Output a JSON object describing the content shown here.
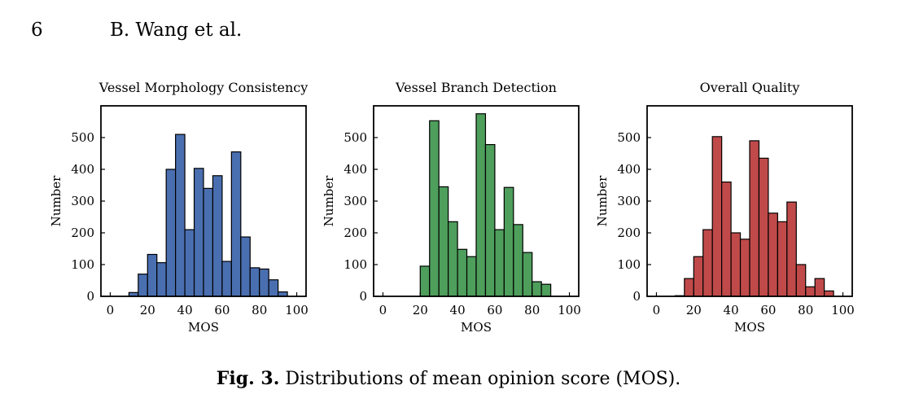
{
  "header": {
    "page_number": "6",
    "running_head": "B. Wang et al."
  },
  "caption": {
    "label": "Fig. 3.",
    "text": "Distributions of mean opinion score (MOS)."
  },
  "chart_data": [
    {
      "type": "bar",
      "title": "Vessel Morphology Consistency",
      "xlabel": "MOS",
      "ylabel": "Number",
      "xlim": [
        -5,
        105
      ],
      "ylim": [
        0,
        600
      ],
      "xticks": [
        0,
        20,
        40,
        60,
        80,
        100
      ],
      "yticks": [
        0,
        100,
        200,
        300,
        400,
        500
      ],
      "bin_width": 5,
      "bin_starts": [
        10,
        15,
        20,
        25,
        30,
        35,
        40,
        45,
        50,
        55,
        60,
        65,
        70,
        75,
        80,
        85,
        90
      ],
      "values": [
        12,
        70,
        132,
        106,
        400,
        510,
        210,
        403,
        340,
        380,
        110,
        455,
        187,
        90,
        86,
        52,
        14
      ],
      "color": "#4a6fb0",
      "grid": false,
      "legend": "none"
    },
    {
      "type": "bar",
      "title": "Vessel Branch Detection",
      "xlabel": "MOS",
      "ylabel": "Number",
      "xlim": [
        -5,
        105
      ],
      "ylim": [
        0,
        600
      ],
      "xticks": [
        0,
        20,
        40,
        60,
        80,
        100
      ],
      "yticks": [
        0,
        100,
        200,
        300,
        400,
        500
      ],
      "bin_width": 5,
      "bin_starts": [
        20,
        25,
        30,
        35,
        40,
        45,
        50,
        55,
        60,
        65,
        70,
        75,
        80,
        85
      ],
      "values": [
        95,
        553,
        345,
        235,
        148,
        125,
        575,
        478,
        210,
        343,
        226,
        138,
        46,
        38
      ],
      "color": "#4e9e5c",
      "grid": false,
      "legend": "none"
    },
    {
      "type": "bar",
      "title": "Overall Quality",
      "xlabel": "MOS",
      "ylabel": "Number",
      "xlim": [
        -5,
        105
      ],
      "ylim": [
        0,
        600
      ],
      "xticks": [
        0,
        20,
        40,
        60,
        80,
        100
      ],
      "yticks": [
        0,
        100,
        200,
        300,
        400,
        500
      ],
      "bin_width": 5,
      "bin_starts": [
        10,
        15,
        20,
        25,
        30,
        35,
        40,
        45,
        50,
        55,
        60,
        65,
        70,
        75,
        80,
        85,
        90
      ],
      "values": [
        2,
        56,
        125,
        210,
        503,
        360,
        200,
        180,
        490,
        435,
        262,
        235,
        297,
        100,
        30,
        56,
        17
      ],
      "color": "#c04a4a",
      "grid": false,
      "legend": "none"
    }
  ]
}
